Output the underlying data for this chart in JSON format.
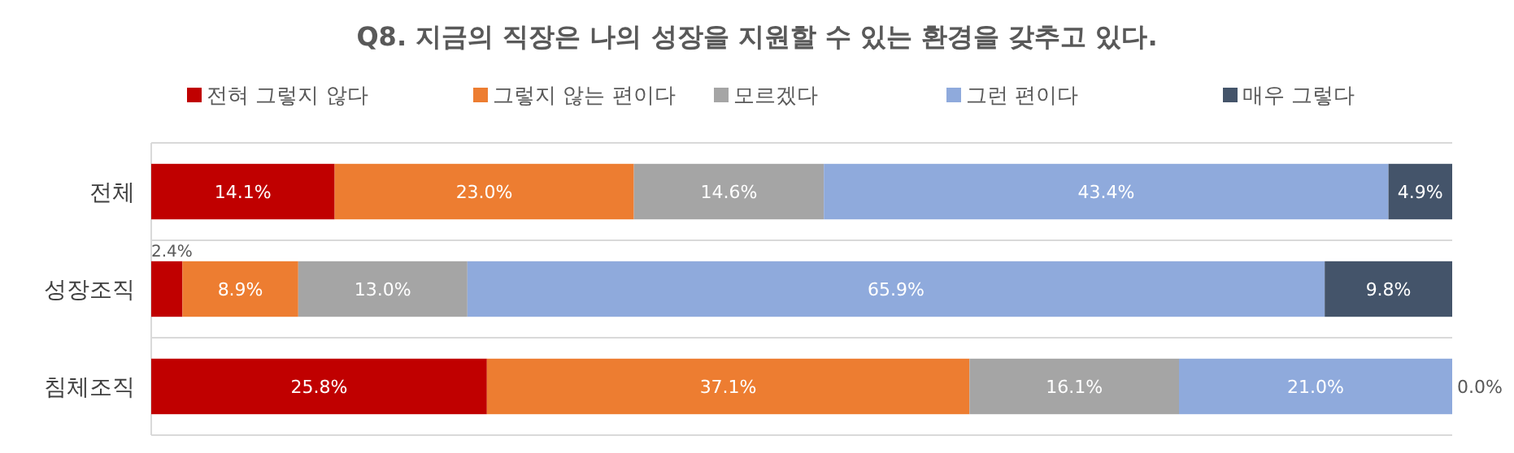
{
  "chart_data": {
    "type": "bar",
    "orientation": "horizontal",
    "stacked": true,
    "title": "Q8. 지금의 직장은 나의 성장을 지원할 수 있는 환경을 갖추고 있다.",
    "categories": [
      "전체",
      "성장조직",
      "침체조직"
    ],
    "xlim": [
      0,
      100
    ],
    "tick_labels": "y",
    "grid": "y",
    "legend": "top",
    "series": [
      {
        "name": "전혀 그렇지 않다",
        "color": "#c00000",
        "values": [
          14.1,
          2.4,
          25.8
        ],
        "value_labels": [
          "14.1%",
          "2.4%",
          "25.8%"
        ]
      },
      {
        "name": "그렇지 않는 편이다",
        "color": "#ed7d31",
        "values": [
          23.0,
          8.9,
          37.1
        ],
        "value_labels": [
          "23.0%",
          "8.9%",
          "37.1%"
        ]
      },
      {
        "name": "모르겠다",
        "color": "#a5a5a5",
        "values": [
          14.6,
          13.0,
          16.1
        ],
        "value_labels": [
          "14.6%",
          "13.0%",
          "16.1%"
        ]
      },
      {
        "name": "그런 편이다",
        "color": "#8faadc",
        "values": [
          43.4,
          65.9,
          21.0
        ],
        "value_labels": [
          "43.4%",
          "65.9%",
          "21.0%"
        ]
      },
      {
        "name": "매우 그렇다",
        "color": "#44546a",
        "values": [
          4.9,
          9.8,
          0.0
        ],
        "value_labels": [
          "4.9%",
          "9.8%",
          "0.0%"
        ]
      }
    ]
  }
}
